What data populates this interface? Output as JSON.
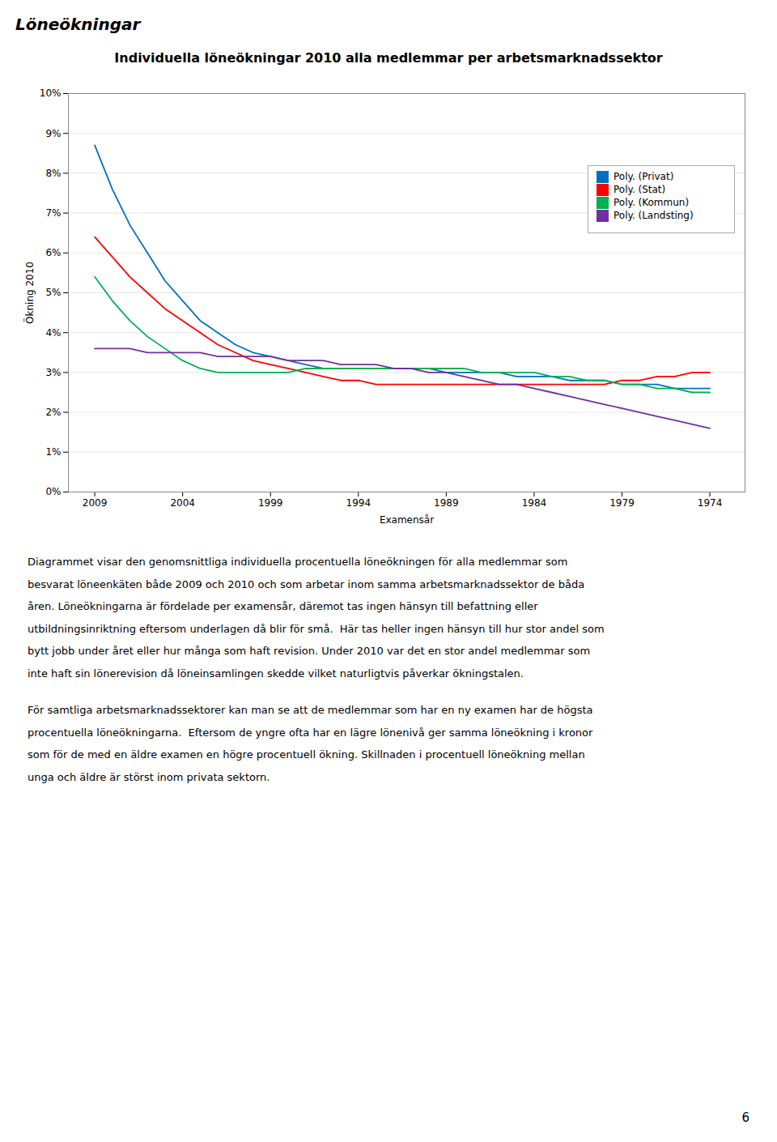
{
  "header": "Löneökningar",
  "chart_data": {
    "type": "line",
    "title": "Individuella löneökningar 2010 alla medlemmar per arbetsmarknadssektor",
    "xlabel": "Examensår",
    "ylabel": "Ökning 2010",
    "x": [
      2009,
      2008,
      2007,
      2006,
      2005,
      2004,
      2003,
      2002,
      2001,
      2000,
      1999,
      1998,
      1997,
      1996,
      1995,
      1994,
      1993,
      1992,
      1991,
      1990,
      1989,
      1988,
      1987,
      1986,
      1985,
      1984,
      1983,
      1982,
      1981,
      1980,
      1979,
      1978,
      1977,
      1976,
      1975,
      1974
    ],
    "series": [
      {
        "name": "Poly. (Privat)",
        "color": "#0070C0",
        "values": [
          0.087,
          0.076,
          0.067,
          0.06,
          0.053,
          0.048,
          0.043,
          0.04,
          0.037,
          0.035,
          0.034,
          0.033,
          0.032,
          0.031,
          0.031,
          0.031,
          0.031,
          0.031,
          0.031,
          0.031,
          0.03,
          0.03,
          0.03,
          0.03,
          0.029,
          0.029,
          0.029,
          0.028,
          0.028,
          0.028,
          0.027,
          0.027,
          0.027,
          0.026,
          0.026,
          0.026
        ]
      },
      {
        "name": "Poly. (Stat)",
        "color": "#FF0000",
        "values": [
          0.064,
          0.059,
          0.054,
          0.05,
          0.046,
          0.043,
          0.04,
          0.037,
          0.035,
          0.033,
          0.032,
          0.031,
          0.03,
          0.029,
          0.028,
          0.028,
          0.027,
          0.027,
          0.027,
          0.027,
          0.027,
          0.027,
          0.027,
          0.027,
          0.027,
          0.027,
          0.027,
          0.027,
          0.027,
          0.027,
          0.028,
          0.028,
          0.029,
          0.029,
          0.03,
          0.03
        ]
      },
      {
        "name": "Poly. (Kommun)",
        "color": "#00B050",
        "values": [
          0.054,
          0.048,
          0.043,
          0.039,
          0.036,
          0.033,
          0.031,
          0.03,
          0.03,
          0.03,
          0.03,
          0.03,
          0.031,
          0.031,
          0.031,
          0.031,
          0.031,
          0.031,
          0.031,
          0.031,
          0.031,
          0.031,
          0.03,
          0.03,
          0.03,
          0.03,
          0.029,
          0.029,
          0.028,
          0.028,
          0.027,
          0.027,
          0.026,
          0.026,
          0.025,
          0.025
        ]
      },
      {
        "name": "Poly. (Landsting)",
        "color": "#7030A0",
        "values": [
          0.036,
          0.036,
          0.036,
          0.035,
          0.035,
          0.035,
          0.035,
          0.034,
          0.034,
          0.034,
          0.034,
          0.033,
          0.033,
          0.033,
          0.032,
          0.032,
          0.032,
          0.031,
          0.031,
          0.03,
          0.03,
          0.029,
          0.028,
          0.027,
          0.027,
          0.026,
          0.025,
          0.024,
          0.023,
          0.022,
          0.021,
          0.02,
          0.019,
          0.018,
          0.017,
          0.016
        ]
      }
    ],
    "xlim": [
      2010.5,
      1972
    ],
    "xticks": [
      2009,
      2004,
      1999,
      1994,
      1989,
      1984,
      1979,
      1974
    ],
    "ylim": [
      0.0,
      0.1
    ],
    "yticks": [
      {
        "value": 0.0,
        "label": "0%"
      },
      {
        "value": 0.01,
        "label": "1%"
      },
      {
        "value": 0.02,
        "label": "2%"
      },
      {
        "value": 0.03,
        "label": "3%"
      },
      {
        "value": 0.04,
        "label": "4%"
      },
      {
        "value": 0.05,
        "label": "5%"
      },
      {
        "value": 0.06,
        "label": "6%"
      },
      {
        "value": 0.07,
        "label": "7%"
      },
      {
        "value": 0.08,
        "label": "8%"
      },
      {
        "value": 0.09,
        "label": "9%"
      },
      {
        "value": 0.1,
        "label": "10%"
      }
    ],
    "grid": "y",
    "legend": "upper right"
  },
  "body_text": [
    [
      "Diagrammet visar den genomsnittliga individuella procentuella löneökningen för alla medlemmar som",
      "besvarat löneenkäten både 2009 och 2010 och som arbetar inom samma arbetsmarknadssektor de båda",
      "åren. Löneökningarna är fördelade per examensår, däremot tas ingen hänsyn till befattning eller",
      "utbildningsinriktning eftersom underlagen då blir för små.  Här tas heller ingen hänsyn till hur stor andel som",
      "bytt jobb under året eller hur många som haft revision. Under 2010 var det en stor andel medlemmar som",
      "inte haft sin lönerevision då löneinsamlingen skedde vilket naturligtvis påverkar ökningstalen."
    ],
    [
      "För samtliga arbetsmarknadssektorer kan man se att de medlemmar som har en ny examen har de högsta",
      "procentuella löneökningarna.  Eftersom de yngre ofta har en lägre lönenivå ger samma löneökning i kronor",
      "som för de med en äldre examen en högre procentuell ökning. Skillnaden i procentuell löneökning mellan",
      "unga och äldre är störst inom privata sektorn."
    ]
  ],
  "page_number": "6"
}
